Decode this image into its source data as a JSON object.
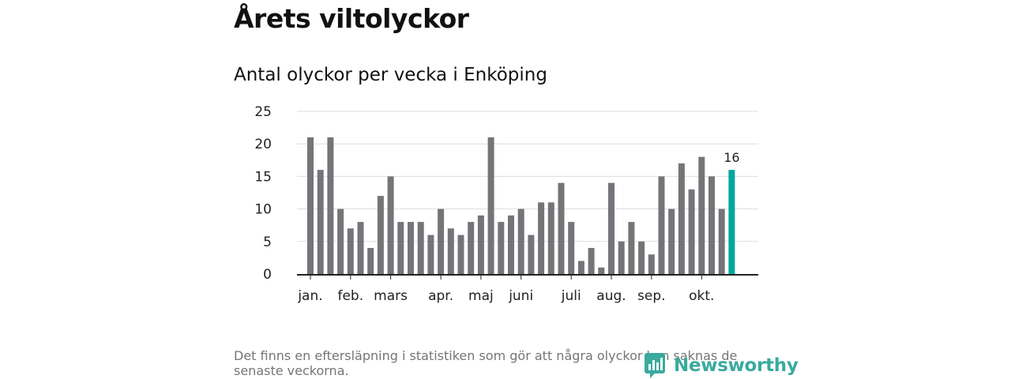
{
  "page_title": "Årets viltolyckor",
  "chart_title": "Antal olyckor per vecka i Enköping",
  "footnote": "Det finns en eftersläpning i statistiken som gör att några olyckor kan saknas de senaste veckorna.",
  "brand": {
    "name": "Newsworthy",
    "icon": "newsworthy-logo-icon"
  },
  "colors": {
    "bar": "#757478",
    "highlight": "#00a79d",
    "grid": "#dddddd",
    "axis": "#222222",
    "brand": "#3aaa9d"
  },
  "chart_data": {
    "type": "bar",
    "title": "Antal olyckor per vecka i Enköping",
    "xlabel": "",
    "ylabel": "",
    "ylim": [
      0,
      25
    ],
    "yticks": [
      0,
      5,
      10,
      15,
      20,
      25
    ],
    "grid": true,
    "x": [
      1,
      2,
      3,
      4,
      5,
      6,
      7,
      8,
      9,
      10,
      11,
      12,
      13,
      14,
      15,
      16,
      17,
      18,
      19,
      20,
      21,
      22,
      23,
      24,
      25,
      26,
      27,
      28,
      29,
      30,
      31,
      32,
      33,
      34,
      35,
      36,
      37,
      38,
      39,
      40,
      41,
      42,
      43
    ],
    "values": [
      21,
      16,
      21,
      10,
      7,
      8,
      4,
      12,
      15,
      8,
      8,
      8,
      6,
      10,
      7,
      6,
      8,
      9,
      21,
      8,
      9,
      10,
      6,
      11,
      11,
      14,
      8,
      2,
      4,
      1,
      14,
      5,
      8,
      5,
      3,
      15,
      10,
      17,
      13,
      18,
      15,
      10,
      16
    ],
    "highlight_last": true,
    "data_labels": [
      {
        "x": 43,
        "text": "16"
      }
    ],
    "month_labels": [
      {
        "label": "jan.",
        "week": 1
      },
      {
        "label": "feb.",
        "week": 5
      },
      {
        "label": "mars",
        "week": 9
      },
      {
        "label": "apr.",
        "week": 14
      },
      {
        "label": "maj",
        "week": 18
      },
      {
        "label": "juni",
        "week": 22
      },
      {
        "label": "juli",
        "week": 27
      },
      {
        "label": "aug.",
        "week": 31
      },
      {
        "label": "sep.",
        "week": 35
      },
      {
        "label": "okt.",
        "week": 40
      }
    ]
  }
}
